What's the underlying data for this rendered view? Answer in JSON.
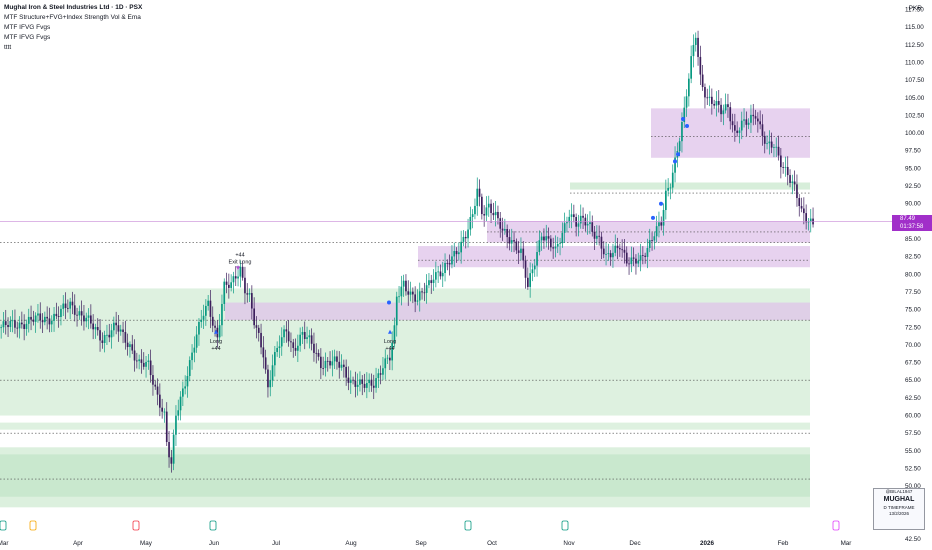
{
  "legend": {
    "title": "Mughal Iron & Steel Industries Ltd · 1D · PSX",
    "indicators": [
      "MTF Structure+FVG+Index Strength Vol & Ema",
      "MTF IFVG Fvgs",
      "MTF IFVG Fvgs",
      "tttt"
    ]
  },
  "currency": "PKR",
  "price_badge": {
    "price": "87.49",
    "countdown": "01:37:58"
  },
  "watermark": {
    "user": "@BILAL1947",
    "symbol": "MUGHAL",
    "tf": "D TIMEFRAME",
    "date": "13/2/2026"
  },
  "colors": {
    "up": "#089981",
    "down": "#3c1e5c",
    "green_zone": "#d3ecd6",
    "green_zone_dark": "#7ac58a",
    "purple_zone": "#dfc3ea",
    "price_line": "#c98bd8",
    "signal": "#b44fd1"
  },
  "chart_data": {
    "type": "candlestick",
    "title": "Mughal Iron & Steel Industries Ltd · 1D · PSX",
    "y_ticks": [
      42.5,
      45.0,
      47.5,
      50.0,
      52.5,
      55.0,
      57.5,
      60.0,
      62.5,
      65.0,
      67.5,
      70.0,
      72.5,
      75.0,
      77.5,
      80.0,
      82.5,
      85.0,
      87.5,
      90.0,
      92.5,
      95.0,
      97.5,
      100.0,
      102.5,
      105.0,
      107.5,
      110.0,
      112.5,
      115.0,
      117.5
    ],
    "x_ticks": [
      "Mar",
      "Apr",
      "May",
      "Jun",
      "Jul",
      "Aug",
      "Sep",
      "Oct",
      "Nov",
      "Dec",
      "2026",
      "Feb",
      "Mar"
    ],
    "ylim": [
      41,
      119
    ],
    "last_price": 87.49,
    "annotations": [
      {
        "label": "Long",
        "sub": "+44",
        "date": "Jun",
        "price": 72.0
      },
      {
        "label": "Exit Long",
        "sub": "+44",
        "date": "Jun",
        "price": 80.0
      },
      {
        "label": "Long",
        "sub": "+44",
        "date": "Aug",
        "price": 72.0
      }
    ],
    "series": [
      {
        "anchors": [
          [
            0,
            72.5
          ],
          [
            8,
            73
          ],
          [
            14,
            73.5
          ],
          [
            24,
            74
          ],
          [
            30,
            75.8
          ],
          [
            38,
            73.2
          ],
          [
            44,
            71
          ],
          [
            50,
            72.5
          ],
          [
            56,
            70
          ],
          [
            60,
            67.2
          ],
          [
            64,
            67
          ],
          [
            68,
            63
          ],
          [
            71,
            60
          ],
          [
            72,
            56
          ],
          [
            74,
            52.7
          ],
          [
            76,
            60
          ],
          [
            80,
            65
          ],
          [
            84,
            70
          ],
          [
            88,
            74.5
          ],
          [
            90,
            76
          ],
          [
            94,
            71
          ],
          [
            97,
            78
          ],
          [
            100,
            78.5
          ],
          [
            102,
            80
          ],
          [
            104,
            81
          ],
          [
            106,
            78
          ],
          [
            108,
            76.5
          ],
          [
            110,
            73
          ],
          [
            112,
            71
          ],
          [
            114,
            69
          ],
          [
            116,
            64
          ],
          [
            118,
            67.5
          ],
          [
            121,
            70
          ],
          [
            124,
            72
          ],
          [
            127,
            69.5
          ],
          [
            131,
            71.5
          ],
          [
            135,
            70
          ],
          [
            139,
            67.5
          ],
          [
            144,
            67.5
          ],
          [
            148,
            67
          ],
          [
            152,
            65
          ],
          [
            157,
            64
          ],
          [
            162,
            64.8
          ],
          [
            166,
            67
          ],
          [
            169,
            68
          ],
          [
            171,
            72
          ],
          [
            172,
            77
          ],
          [
            175,
            79
          ],
          [
            178,
            77
          ],
          [
            181,
            76
          ],
          [
            184,
            78
          ],
          [
            188,
            80
          ],
          [
            192,
            80
          ],
          [
            196,
            82.5
          ],
          [
            199,
            84
          ],
          [
            202,
            85.5
          ],
          [
            205,
            88
          ],
          [
            207,
            92
          ],
          [
            209,
            89
          ],
          [
            212,
            89.8
          ],
          [
            215,
            88
          ],
          [
            218,
            86
          ],
          [
            222,
            85
          ],
          [
            226,
            83
          ],
          [
            229,
            78
          ],
          [
            232,
            82
          ],
          [
            235,
            86
          ],
          [
            238,
            84.5
          ],
          [
            241,
            83
          ],
          [
            244,
            86
          ],
          [
            247,
            89
          ],
          [
            250,
            87
          ],
          [
            253,
            87.5
          ],
          [
            256,
            87
          ],
          [
            260,
            85
          ],
          [
            263,
            82
          ],
          [
            266,
            83
          ],
          [
            269,
            84.5
          ],
          [
            272,
            82
          ],
          [
            275,
            81.5
          ],
          [
            278,
            82
          ],
          [
            281,
            84
          ],
          [
            284,
            86
          ],
          [
            287,
            87
          ],
          [
            289,
            91
          ],
          [
            291,
            93
          ],
          [
            294,
            98
          ],
          [
            297,
            103
          ],
          [
            300,
            110
          ],
          [
            302,
            114
          ],
          [
            304,
            108
          ],
          [
            307,
            105
          ],
          [
            310,
            104
          ],
          [
            313,
            103
          ],
          [
            316,
            104
          ],
          [
            319,
            100
          ],
          [
            322,
            101
          ],
          [
            325,
            101.5
          ],
          [
            328,
            103
          ],
          [
            330,
            101
          ],
          [
            333,
            98
          ],
          [
            336,
            98
          ],
          [
            339,
            96
          ],
          [
            342,
            94.5
          ],
          [
            345,
            92
          ],
          [
            348,
            88.5
          ],
          [
            350,
            88
          ],
          [
            353,
            87.5
          ]
        ]
      }
    ],
    "zones": [
      {
        "kind": "green",
        "from": 60,
        "to": 78
      },
      {
        "kind": "green",
        "from": 58,
        "to": 59
      },
      {
        "kind": "green_dark",
        "from": 48.5,
        "to": 54.5
      },
      {
        "kind": "green_light",
        "from": 47,
        "to": 55.5
      },
      {
        "kind": "purple",
        "from": 73.5,
        "to": 76
      },
      {
        "kind": "purple",
        "from": 84.5,
        "to": 87.5
      },
      {
        "kind": "purple",
        "from": 96.5,
        "to": 103.5
      },
      {
        "kind": "purple",
        "from": 81,
        "to": 84
      },
      {
        "kind": "green_thin",
        "from": 92,
        "to": 93
      }
    ]
  }
}
